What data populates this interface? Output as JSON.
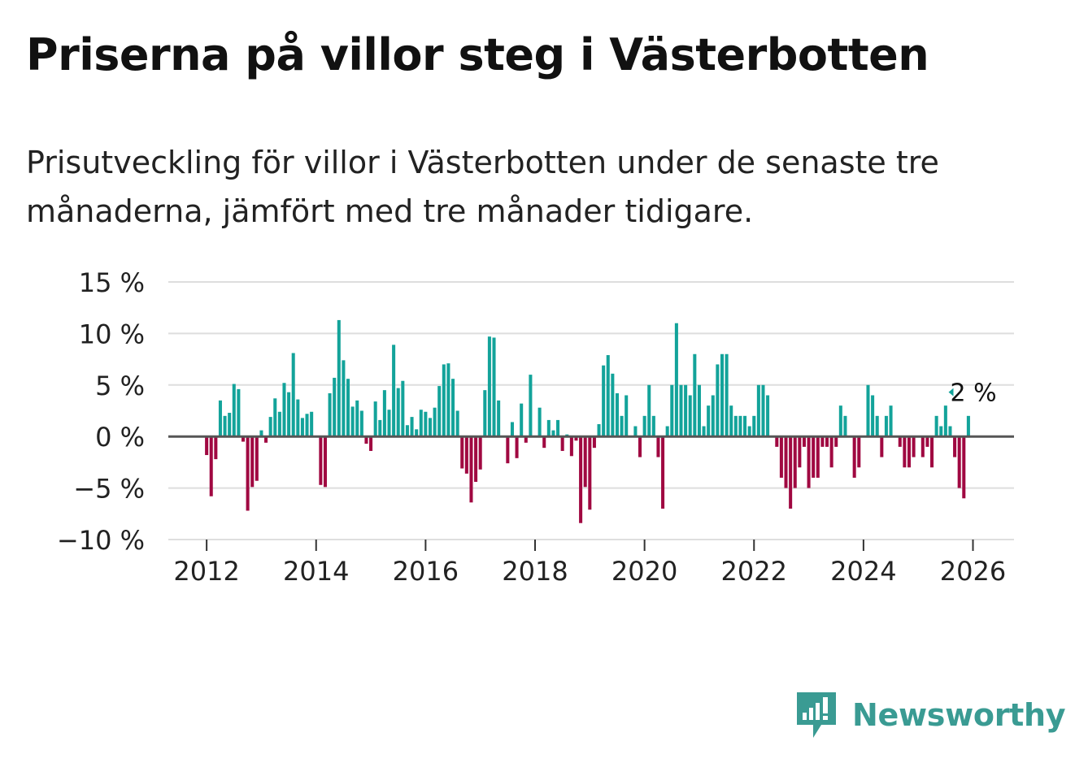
{
  "title": "Priserna på villor steg i Västerbotten",
  "subtitle": "Prisutveckling för villor i Västerbotten under de senaste tre månaderna, jämfört med tre månader tidigare.",
  "brand": {
    "name": "Newsworthy"
  },
  "colors": {
    "positive": "#13a39a",
    "negative": "#a00841",
    "grid": "#dedede",
    "zero_line": "#555555",
    "text": "#111111",
    "brand": "#3a9b93"
  },
  "chart_data": {
    "type": "bar",
    "title": "Priserna på villor steg i Västerbotten",
    "xlabel": "",
    "ylabel": "",
    "start_month": "2012-01",
    "interval": "monthly",
    "values": [
      -1.8,
      -5.8,
      -2.2,
      3.5,
      2.0,
      2.3,
      5.1,
      4.6,
      -0.5,
      -7.2,
      -4.9,
      -4.3,
      0.6,
      -0.6,
      1.9,
      3.7,
      2.4,
      5.2,
      4.3,
      8.1,
      3.6,
      1.8,
      2.2,
      2.4,
      0,
      -4.7,
      -4.9,
      4.2,
      5.7,
      11.3,
      7.4,
      5.6,
      2.9,
      3.5,
      2.5,
      -0.7,
      -1.4,
      3.4,
      1.6,
      4.5,
      2.6,
      8.9,
      4.7,
      5.4,
      1.1,
      1.9,
      0.7,
      2.6,
      2.4,
      1.8,
      2.8,
      4.9,
      7.0,
      7.1,
      5.6,
      2.5,
      -3.1,
      -3.6,
      -6.4,
      -4.4,
      -3.2,
      4.5,
      9.7,
      9.6,
      3.5,
      0,
      -2.6,
      1.4,
      -2.1,
      3.2,
      -0.6,
      6.0,
      0,
      2.8,
      -1.1,
      1.6,
      0.6,
      1.6,
      -1.4,
      0.2,
      -1.9,
      -0.4,
      -8.4,
      -4.9,
      -7.1,
      -1.1,
      1.2,
      6.9,
      7.9,
      6.1,
      4.2,
      2.0,
      4.0,
      0,
      1.0,
      -2.0,
      2.0,
      5.0,
      2.0,
      -2.0,
      -7.0,
      1.0,
      5.0,
      11.0,
      5.0,
      5.0,
      4.0,
      8.0,
      5.0,
      1.0,
      3.0,
      4.0,
      7.0,
      8.0,
      8.0,
      3.0,
      2.0,
      2.0,
      2.0,
      1.0,
      2.0,
      5.0,
      5.0,
      4.0,
      0,
      -1.0,
      -4.0,
      -5.0,
      -7.0,
      -5.0,
      -3.0,
      -1.0,
      -5.0,
      -4.0,
      -4.0,
      -1.0,
      -1.0,
      -3.0,
      -1.0,
      3.0,
      2.0,
      0,
      -4.0,
      -3.0,
      0,
      5.0,
      4.0,
      2.0,
      -2.0,
      2.0,
      3.0,
      0,
      -1.0,
      -3.0,
      -3.0,
      -2.0,
      0,
      -2.0,
      -1.0,
      -3.0,
      2.0,
      1.0,
      3.0,
      1.0,
      -2.0,
      -5.0,
      -6.0,
      2.0
    ],
    "y_ticks": [
      15,
      10,
      5,
      0,
      -5,
      -10
    ],
    "y_tick_labels": [
      "15 %",
      "10 %",
      "5 %",
      "0 %",
      "−5 %",
      "−10 %"
    ],
    "x_ticks": [
      2012,
      2014,
      2016,
      2018,
      2020,
      2022,
      2024,
      2026
    ],
    "x_tick_labels": [
      "2012",
      "2014",
      "2016",
      "2018",
      "2020",
      "2022",
      "2024",
      "2026"
    ],
    "ylim": [
      -10,
      15
    ],
    "xlim": [
      2011.3,
      2026.75
    ],
    "grid": true,
    "annotation": {
      "text": "2 %",
      "month_index": 168,
      "value": 2
    }
  }
}
